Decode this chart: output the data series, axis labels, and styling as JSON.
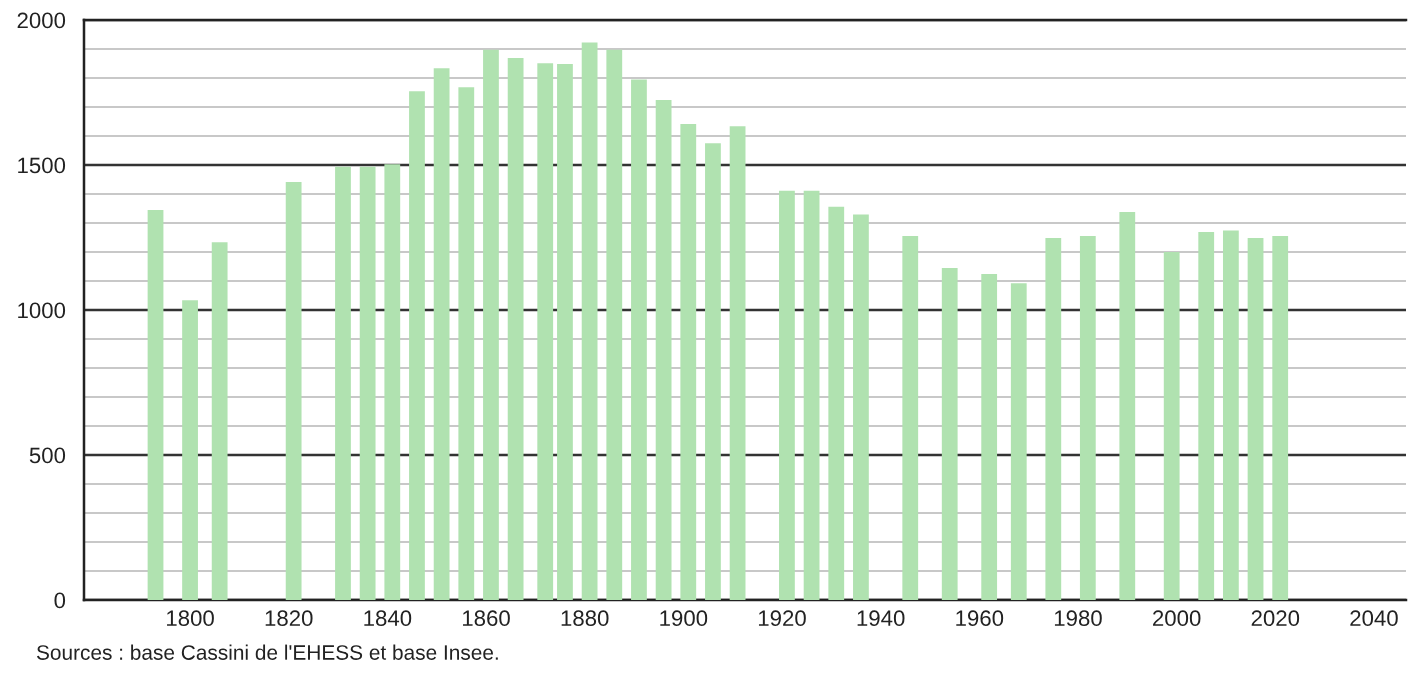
{
  "chart_data": {
    "type": "bar",
    "x": [
      1793,
      1800,
      1806,
      1821,
      1831,
      1836,
      1841,
      1846,
      1851,
      1856,
      1861,
      1866,
      1872,
      1876,
      1881,
      1886,
      1891,
      1896,
      1901,
      1906,
      1911,
      1921,
      1926,
      1931,
      1936,
      1946,
      1954,
      1962,
      1968,
      1975,
      1982,
      1990,
      1999,
      2006,
      2011,
      2016,
      2021
    ],
    "values": [
      1345,
      1034,
      1234,
      1441,
      1494,
      1494,
      1503,
      1754,
      1834,
      1768,
      1897,
      1869,
      1851,
      1848,
      1922,
      1897,
      1795,
      1724,
      1641,
      1575,
      1634,
      1411,
      1411,
      1356,
      1329,
      1255,
      1145,
      1124,
      1092,
      1248,
      1255,
      1338,
      1200,
      1269,
      1274,
      1248,
      1255
    ],
    "color": "#b0e2b0",
    "xlim": [
      1778.5,
      2046.5
    ],
    "xticks": [
      1800,
      1820,
      1840,
      1860,
      1880,
      1900,
      1920,
      1940,
      1960,
      1980,
      2000,
      2020,
      2040
    ],
    "ylim": [
      0,
      2000
    ],
    "yticks": [
      0,
      500,
      1000,
      1500,
      2000
    ],
    "grid": "y",
    "annotations": [
      "Sources : base Cassini de l'EHESS et base Insee."
    ]
  }
}
